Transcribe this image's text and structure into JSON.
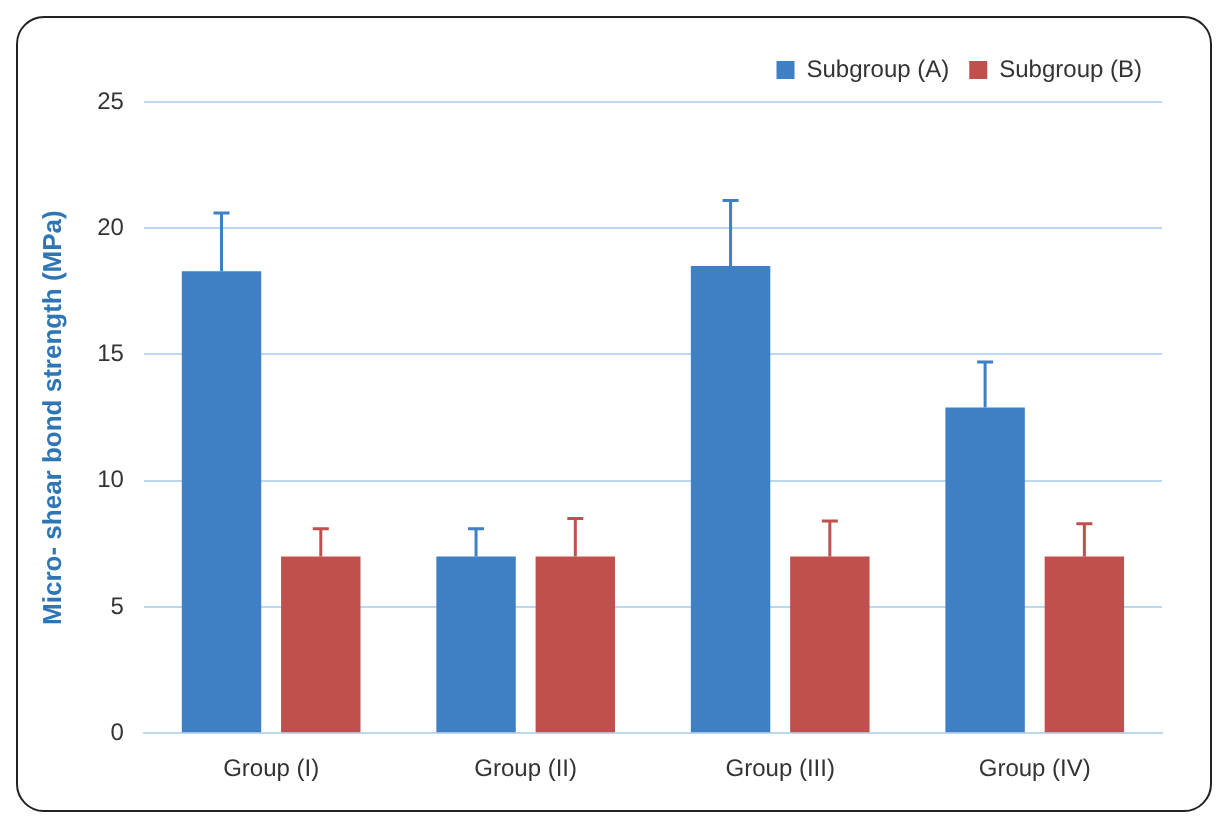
{
  "chart_data": {
    "type": "bar",
    "ylabel": "Micro- shear bond strength (MPa)",
    "categories": [
      "Group (I)",
      "Group (II)",
      "Group (III)",
      "Group (IV)"
    ],
    "series": [
      {
        "name": "Subgroup (A)",
        "color": "#3f7fc4",
        "values": [
          18.3,
          7.0,
          18.5,
          12.9
        ],
        "errors": [
          [
            18.3,
            20.6
          ],
          [
            7.0,
            8.1
          ],
          [
            18.5,
            21.1
          ],
          [
            12.9,
            14.7
          ]
        ]
      },
      {
        "name": "Subgroup (B)",
        "color": "#c0504d",
        "values": [
          7.0,
          7.0,
          7.0,
          7.0
        ],
        "errors": [
          [
            7.0,
            8.1
          ],
          [
            7.0,
            8.5
          ],
          [
            7.0,
            8.4
          ],
          [
            7.0,
            8.3
          ]
        ]
      }
    ],
    "ylim": [
      0,
      25
    ],
    "yticks": [
      0,
      5,
      10,
      15,
      20,
      25
    ],
    "grid": "y",
    "legend": "top right"
  }
}
